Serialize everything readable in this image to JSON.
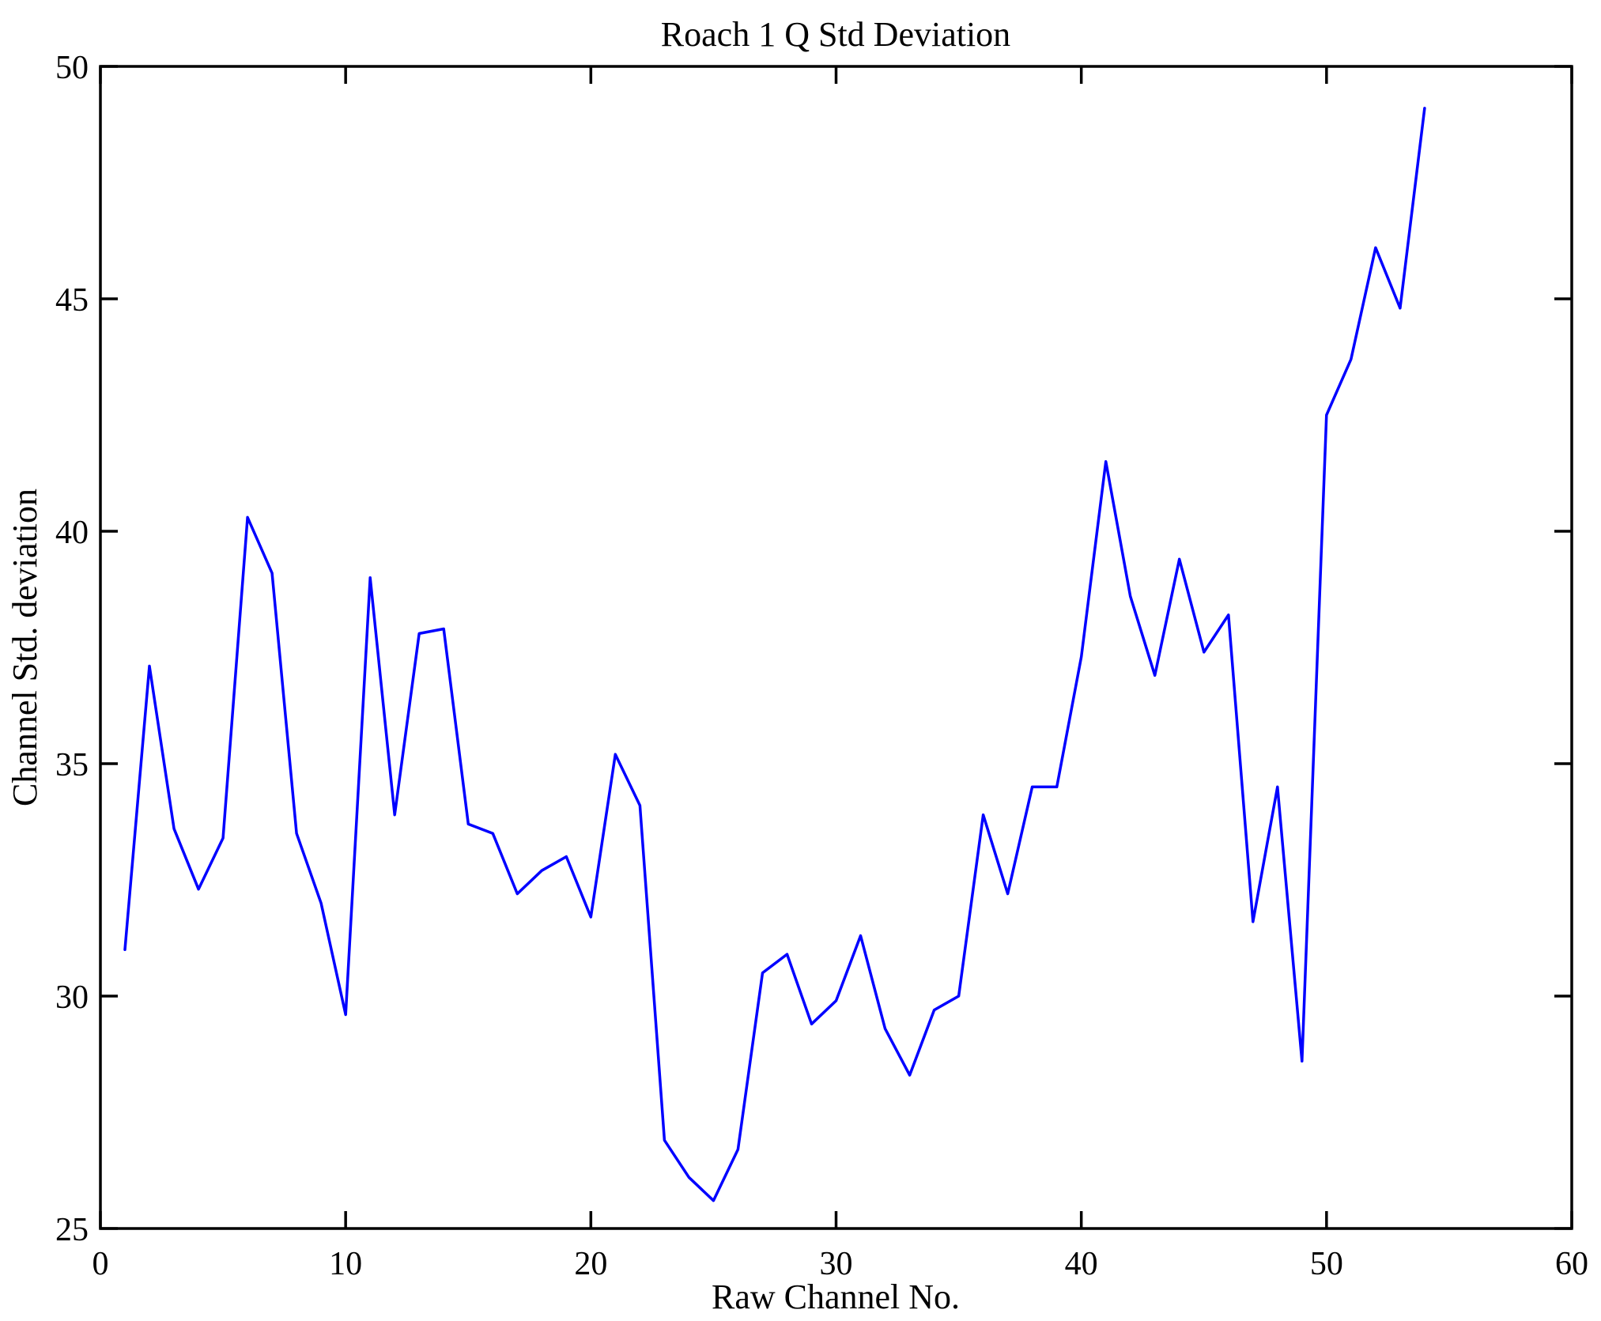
{
  "figure": {
    "background": "#ffffff",
    "axis_color": "#000000",
    "accent_line_color": "#0000ff"
  },
  "chart_data": {
    "type": "line",
    "title": "Roach 1 Q Std Deviation",
    "xlabel": "Raw Channel No.",
    "ylabel": "Channel Std. deviation",
    "xlim": [
      0,
      60
    ],
    "ylim": [
      25,
      50
    ],
    "xticks": [
      0,
      10,
      20,
      30,
      40,
      50,
      60
    ],
    "yticks": [
      25,
      30,
      35,
      40,
      45,
      50
    ],
    "grid": false,
    "legend": "none",
    "box": true,
    "line_color": "#0000ff",
    "x": [
      1,
      2,
      3,
      4,
      5,
      6,
      7,
      8,
      9,
      10,
      11,
      12,
      13,
      14,
      15,
      16,
      17,
      18,
      19,
      20,
      21,
      22,
      23,
      24,
      25,
      26,
      27,
      28,
      29,
      30,
      31,
      32,
      33,
      34,
      35,
      36,
      37,
      38,
      39,
      40,
      41,
      42,
      43,
      44,
      45,
      46,
      47,
      48,
      49,
      50,
      51,
      52,
      53,
      54
    ],
    "y": [
      31.0,
      37.1,
      33.6,
      32.3,
      33.4,
      40.3,
      39.1,
      33.5,
      32.0,
      29.6,
      39.0,
      33.9,
      37.8,
      37.9,
      33.7,
      33.5,
      32.2,
      32.7,
      33.0,
      31.7,
      35.2,
      34.1,
      26.9,
      26.1,
      25.6,
      26.7,
      30.5,
      30.9,
      29.4,
      29.9,
      31.3,
      29.3,
      28.3,
      29.7,
      30.0,
      33.9,
      32.2,
      34.5,
      34.5,
      37.3,
      41.5,
      38.6,
      36.9,
      39.4,
      37.4,
      38.2,
      31.6,
      34.5,
      28.6,
      42.5,
      43.7,
      46.1,
      44.8,
      49.1
    ]
  }
}
